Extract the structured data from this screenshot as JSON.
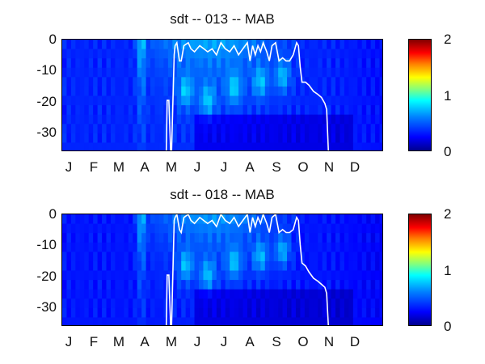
{
  "chart_data": [
    {
      "type": "heatmap",
      "title": "sdt -- 013 -- MAB",
      "xlabel": "",
      "ylabel": "",
      "x_tick_labels": [
        "J",
        "F",
        "M",
        "A",
        "M",
        "J",
        "J",
        "A",
        "S",
        "O",
        "N",
        "D"
      ],
      "y_ticks": [
        0,
        -10,
        -20,
        -30
      ],
      "ylim": [
        -37,
        0
      ],
      "xlim": [
        0,
        365
      ],
      "colorbar": {
        "ticks": [
          0,
          1,
          2
        ],
        "range": [
          0,
          2
        ],
        "colormap": "jet"
      },
      "grid": false,
      "line_series": {
        "color": "#ffffff",
        "x_day": [
          0,
          88,
          89,
          91,
          92,
          100,
          101,
          102,
          106,
          107,
          109,
          110,
          118,
          119,
          121,
          123,
          124,
          127,
          128,
          130,
          133,
          135,
          138,
          143,
          146,
          150,
          156,
          165,
          170,
          175,
          180,
          185,
          190,
          195,
          200,
          205,
          210,
          213,
          216,
          219,
          222,
          225,
          228,
          232,
          235,
          238,
          242,
          246,
          250,
          254,
          258,
          262,
          266,
          268,
          270,
          272,
          276,
          280,
          285,
          290,
          294,
          298,
          300,
          302,
          365
        ],
        "y_depth": [
          null,
          null,
          -37,
          -37,
          null,
          null,
          -37,
          -37,
          null,
          -37,
          -37,
          null,
          -37,
          -20,
          -20,
          -37,
          -37,
          -5,
          -2,
          -1,
          -7,
          -7,
          -2,
          -1,
          -3,
          -4,
          -2,
          -4,
          -3,
          -5,
          -1,
          -3,
          -4,
          -2,
          -5,
          -3,
          -1,
          -7,
          -2,
          -5,
          -2,
          -4,
          -1,
          -4,
          -7,
          -2,
          -1,
          -7,
          -6,
          -7,
          -7,
          -5,
          -1,
          -2,
          -9,
          -14,
          -14,
          -15,
          -17,
          -18,
          -19,
          -21,
          -23,
          -37,
          null
        ]
      }
    },
    {
      "type": "heatmap",
      "title": "sdt -- 018 -- MAB",
      "xlabel": "",
      "ylabel": "",
      "x_tick_labels": [
        "J",
        "F",
        "M",
        "A",
        "M",
        "J",
        "J",
        "A",
        "S",
        "O",
        "N",
        "D"
      ],
      "y_ticks": [
        0,
        -10,
        -20,
        -30
      ],
      "ylim": [
        -37,
        0
      ],
      "xlim": [
        0,
        365
      ],
      "colorbar": {
        "ticks": [
          0,
          1,
          2
        ],
        "range": [
          0,
          2
        ],
        "colormap": "jet"
      },
      "grid": false,
      "line_series": {
        "color": "#ffffff",
        "x_day": [
          0,
          88,
          89,
          91,
          92,
          100,
          101,
          102,
          106,
          107,
          109,
          110,
          118,
          119,
          121,
          123,
          124,
          127,
          128,
          130,
          133,
          135,
          138,
          143,
          146,
          150,
          156,
          165,
          170,
          175,
          180,
          185,
          190,
          195,
          200,
          205,
          210,
          213,
          216,
          219,
          222,
          225,
          228,
          232,
          235,
          238,
          242,
          246,
          250,
          254,
          258,
          262,
          266,
          268,
          270,
          272,
          276,
          280,
          285,
          290,
          294,
          298,
          300,
          302,
          365
        ],
        "y_depth": [
          null,
          null,
          -37,
          -37,
          null,
          null,
          -37,
          -37,
          null,
          -37,
          -37,
          null,
          -37,
          -20,
          -20,
          -37,
          -37,
          -2,
          -1,
          0,
          -5,
          -6,
          -1,
          0,
          -2,
          -3,
          -1,
          -3,
          -2,
          -4,
          0,
          -2,
          -3,
          -1,
          -4,
          -2,
          0,
          -6,
          -1,
          -4,
          -1,
          -3,
          0,
          -3,
          -6,
          -1,
          0,
          -6,
          -5,
          -6,
          -6,
          -5,
          -1,
          -2,
          -10,
          -16,
          -17,
          -19,
          -21,
          -22,
          -23,
          -24,
          -26,
          -37,
          null
        ]
      }
    }
  ]
}
